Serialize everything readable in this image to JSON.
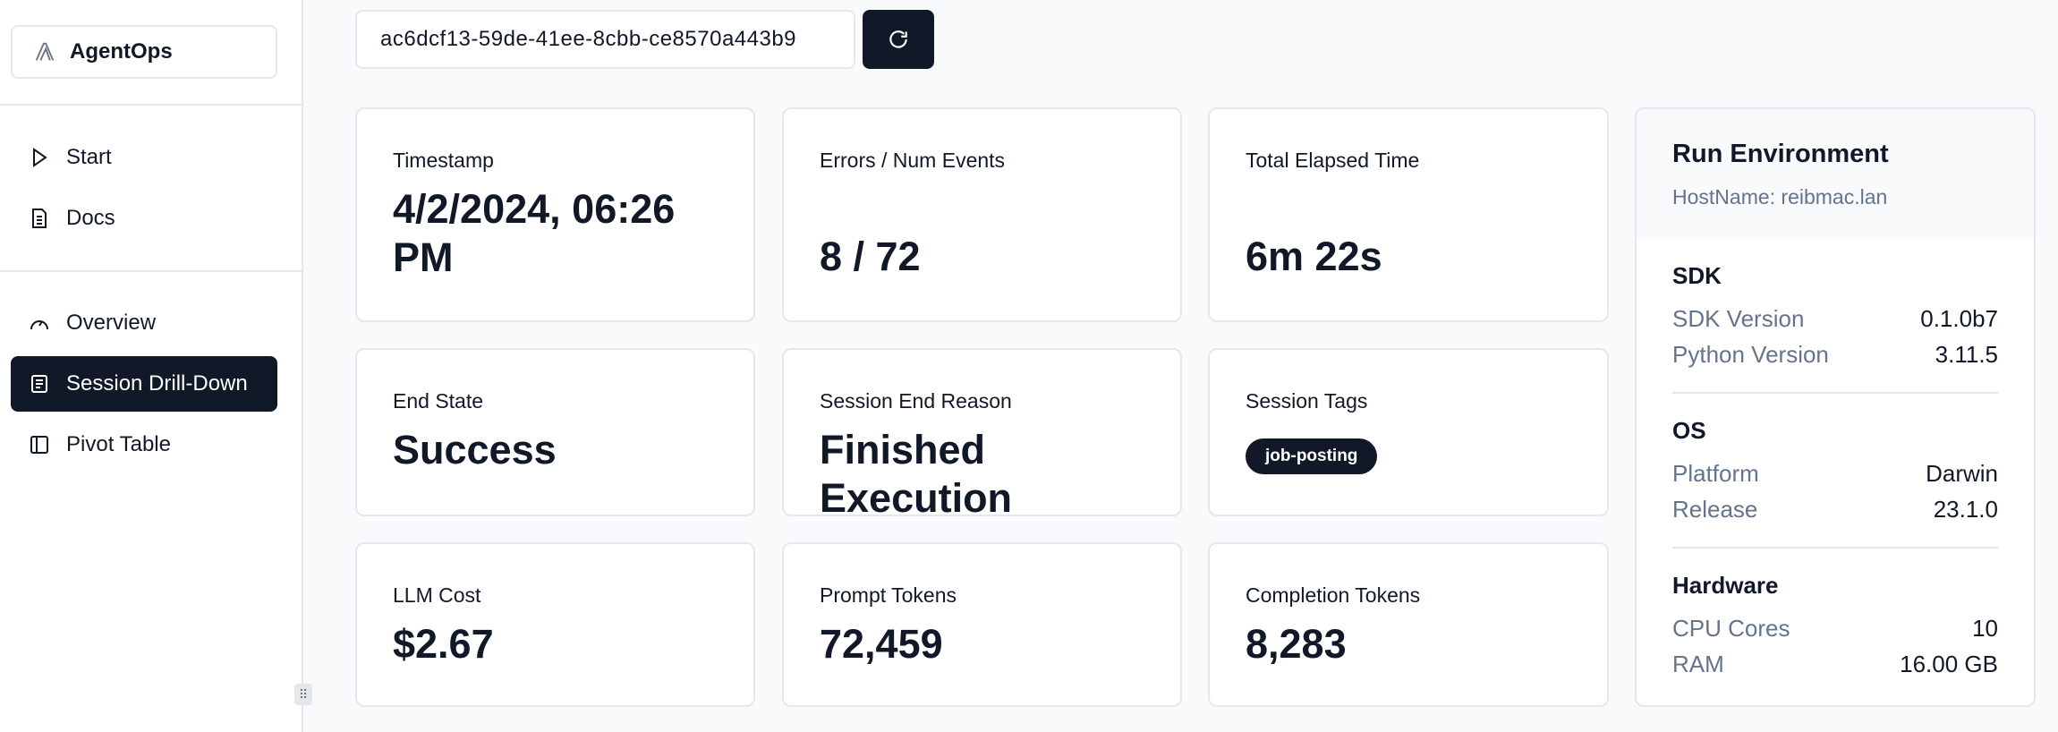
{
  "sidebar": {
    "logo": "AgentOps",
    "items": [
      {
        "label": "Start",
        "icon": "play-icon"
      },
      {
        "label": "Docs",
        "icon": "document-icon"
      },
      {
        "label": "Overview",
        "icon": "gauge-icon"
      },
      {
        "label": "Session Drill-Down",
        "icon": "list-icon",
        "active": true
      },
      {
        "label": "Pivot Table",
        "icon": "table-icon"
      }
    ]
  },
  "search": {
    "value": "ac6dcf13-59de-41ee-8cbb-ce8570a443b9"
  },
  "cards": {
    "timestamp": {
      "label": "Timestamp",
      "value": "4/2/2024, 06:26 PM"
    },
    "errors": {
      "label": "Errors / Num Events",
      "value": "8 / 72"
    },
    "elapsed": {
      "label": "Total Elapsed Time",
      "value": "6m 22s"
    },
    "end_state": {
      "label": "End State",
      "value": "Success"
    },
    "end_reason": {
      "label": "Session End Reason",
      "value": "Finished Execution"
    },
    "tags": {
      "label": "Session Tags",
      "value": "job-posting"
    },
    "cost": {
      "label": "LLM Cost",
      "value": "$2.67"
    },
    "prompt": {
      "label": "Prompt Tokens",
      "value": "72,459"
    },
    "completion": {
      "label": "Completion Tokens",
      "value": "8,283"
    }
  },
  "env": {
    "title": "Run Environment",
    "host": "HostName: reibmac.lan",
    "sdk": {
      "title": "SDK",
      "rows": [
        {
          "k": "SDK Version",
          "v": "0.1.0b7"
        },
        {
          "k": "Python Version",
          "v": "3.11.5"
        }
      ]
    },
    "os": {
      "title": "OS",
      "rows": [
        {
          "k": "Platform",
          "v": "Darwin"
        },
        {
          "k": "Release",
          "v": "23.1.0"
        }
      ]
    },
    "hw": {
      "title": "Hardware",
      "rows": [
        {
          "k": "CPU Cores",
          "v": "10"
        },
        {
          "k": "RAM",
          "v": "16.00 GB"
        }
      ]
    }
  },
  "colors": {
    "primary": "#111827",
    "muted": "#64748b",
    "border": "#e5e7eb"
  }
}
